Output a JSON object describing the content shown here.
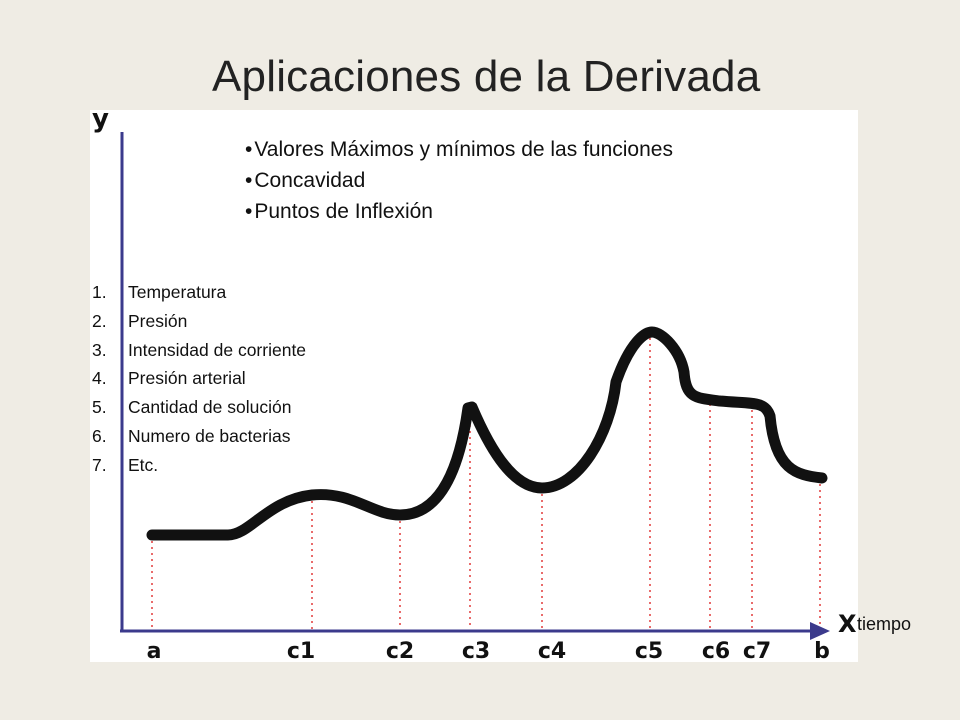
{
  "slide": {
    "title": "Aplicaciones de la Derivada",
    "bullets": [
      "Valores Máximos y mínimos de las funciones",
      "Concavidad",
      "Puntos de Inflexión"
    ],
    "numbered_list": [
      {
        "num": "1.",
        "label": "Temperatura"
      },
      {
        "num": "2.",
        "label": "Presión"
      },
      {
        "num": "3.",
        "label": "Intensidad de corriente"
      },
      {
        "num": "4.",
        "label": "Presión arterial"
      },
      {
        "num": "5.",
        "label": "Cantidad de solución"
      },
      {
        "num": "6.",
        "label": "Numero de bacterias"
      },
      {
        "num": "7.",
        "label": "Etc."
      }
    ],
    "x_axis_caption": "tiempo"
  },
  "figure": {
    "y_axis_letter": "y",
    "x_axis_letter": "X",
    "tick_labels": [
      "a",
      "c1",
      "c2",
      "c3",
      "c4",
      "c5",
      "c6",
      "c7",
      "b"
    ],
    "colors": {
      "axis": "#3b3a8c",
      "curve": "#111111",
      "guides": "#e23a3a",
      "background": "#ffffff",
      "slide_background": "#efece4"
    }
  }
}
